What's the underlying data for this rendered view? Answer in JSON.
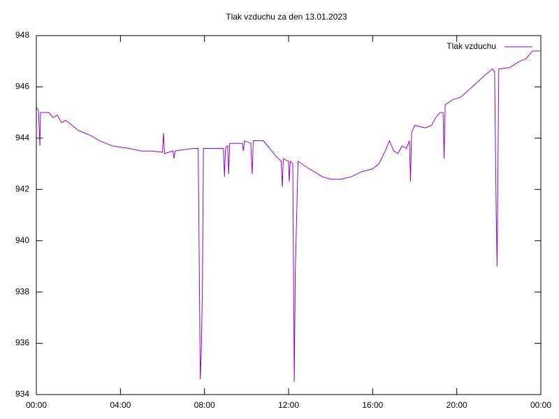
{
  "chart_data": {
    "type": "line",
    "title": "Tlak vzduchu za den 13.01.2023",
    "x": [
      0,
      0.1,
      0.17,
      0.2,
      0.6,
      0.8,
      1.0,
      1.2,
      1.4,
      1.7,
      2.0,
      2.3,
      2.6,
      3.0,
      3.3,
      3.6,
      4.0,
      4.4,
      5.0,
      5.5,
      6.0,
      6.05,
      6.1,
      6.5,
      6.55,
      6.6,
      7.0,
      7.5,
      7.7,
      7.8,
      7.85,
      7.9,
      7.95,
      8.5,
      8.9,
      8.95,
      9.0,
      9.1,
      9.15,
      9.2,
      9.8,
      9.85,
      9.9,
      10.2,
      10.27,
      10.32,
      10.8,
      11.1,
      11.4,
      11.65,
      11.7,
      11.75,
      12.0,
      12.03,
      12.08,
      12.2,
      12.27,
      12.32,
      12.45,
      12.8,
      13.2,
      13.6,
      14.0,
      14.5,
      15.0,
      15.5,
      16.0,
      16.3,
      16.6,
      16.8,
      17.0,
      17.2,
      17.4,
      17.6,
      17.75,
      17.8,
      17.85,
      18.0,
      18.5,
      18.8,
      19.0,
      19.2,
      19.35,
      19.4,
      19.45,
      19.8,
      20.2,
      20.6,
      21.0,
      21.4,
      21.7,
      21.8,
      21.88,
      21.92,
      21.96,
      22.0,
      22.5,
      23.0,
      23.3,
      23.6,
      24.0
    ],
    "series": [
      {
        "name": "Tlak vzduchu",
        "color": "#9400d3",
        "values": [
          945.2,
          945.1,
          943.7,
          945.0,
          945.0,
          944.8,
          944.9,
          944.6,
          944.7,
          944.5,
          944.3,
          944.2,
          944.1,
          943.9,
          943.8,
          943.7,
          943.65,
          943.6,
          943.5,
          943.5,
          943.45,
          944.2,
          943.4,
          943.5,
          943.2,
          943.5,
          943.55,
          943.6,
          943.6,
          934.6,
          935.7,
          938.0,
          943.6,
          943.6,
          943.6,
          942.5,
          943.6,
          943.7,
          942.6,
          943.8,
          943.8,
          943.5,
          943.9,
          943.8,
          942.6,
          943.9,
          943.9,
          943.6,
          943.3,
          943.1,
          942.1,
          943.2,
          943.1,
          942.3,
          943.1,
          943.0,
          934.5,
          938.8,
          943.1,
          942.9,
          942.7,
          942.5,
          942.4,
          942.4,
          942.5,
          942.7,
          942.8,
          943.0,
          943.5,
          943.9,
          943.5,
          943.4,
          943.7,
          943.6,
          943.9,
          942.3,
          944.2,
          944.5,
          944.4,
          944.5,
          944.8,
          945.0,
          945.0,
          943.2,
          945.3,
          945.5,
          945.6,
          945.9,
          946.2,
          946.5,
          946.7,
          946.6,
          940.9,
          939.0,
          942.9,
          946.7,
          946.75,
          947.0,
          947.1,
          947.4,
          947.4
        ]
      }
    ],
    "xlim": [
      0,
      24
    ],
    "xticks": [
      {
        "value": 0,
        "label": "00:00"
      },
      {
        "value": 4,
        "label": "04:00"
      },
      {
        "value": 8,
        "label": "08:00"
      },
      {
        "value": 12,
        "label": "12:00"
      },
      {
        "value": 16,
        "label": "16:00"
      },
      {
        "value": 20,
        "label": "20:00"
      },
      {
        "value": 24,
        "label": "00:00"
      }
    ],
    "ylim": [
      934,
      948
    ],
    "yticks": [
      934,
      936,
      938,
      940,
      942,
      944,
      946,
      948
    ],
    "grid": false,
    "legend": "top-right"
  }
}
